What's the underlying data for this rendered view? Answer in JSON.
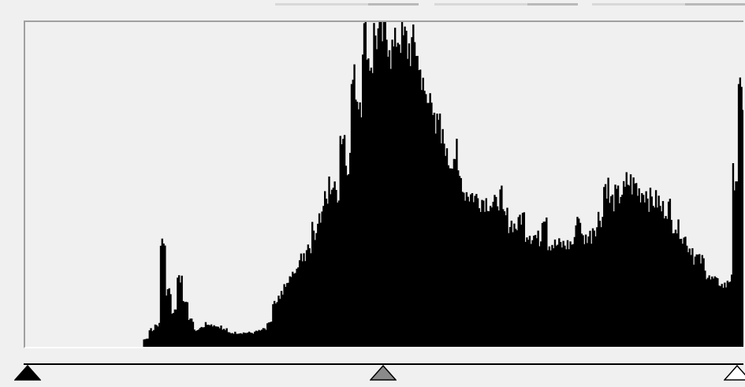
{
  "levels": {
    "histogram": {
      "bin_count": 128,
      "bar_color": "#000000",
      "background_color": "#f0f0f0",
      "profile": [
        [
          0,
          0
        ],
        [
          20,
          0
        ],
        [
          21,
          0.03
        ],
        [
          22,
          0.06
        ],
        [
          24,
          0.09
        ],
        [
          25,
          0.18
        ],
        [
          26,
          0.12
        ],
        [
          27,
          0.15
        ],
        [
          28,
          0.05
        ],
        [
          29,
          0.09
        ],
        [
          30,
          0.06
        ],
        [
          32,
          0.08
        ],
        [
          34,
          0.07
        ],
        [
          36,
          0.05
        ],
        [
          38,
          0.05
        ],
        [
          40,
          0.05
        ],
        [
          42,
          0.06
        ],
        [
          43,
          0.08
        ],
        [
          44,
          0.14
        ],
        [
          46,
          0.2
        ],
        [
          48,
          0.26
        ],
        [
          50,
          0.33
        ],
        [
          52,
          0.42
        ],
        [
          54,
          0.52
        ],
        [
          55,
          0.5
        ],
        [
          56,
          0.55
        ],
        [
          57,
          0.6
        ],
        [
          58,
          0.77
        ],
        [
          59,
          0.8
        ],
        [
          60,
          0.88
        ],
        [
          61,
          0.92
        ],
        [
          62,
          0.96
        ],
        [
          63,
          1.0
        ],
        [
          64,
          0.98
        ],
        [
          65,
          0.95
        ],
        [
          66,
          1.0
        ],
        [
          67,
          0.98
        ],
        [
          68,
          0.96
        ],
        [
          69,
          0.9
        ],
        [
          70,
          0.88
        ],
        [
          71,
          0.78
        ],
        [
          72,
          0.8
        ],
        [
          73,
          0.7
        ],
        [
          74,
          0.66
        ],
        [
          75,
          0.6
        ],
        [
          76,
          0.58
        ],
        [
          78,
          0.5
        ],
        [
          80,
          0.48
        ],
        [
          82,
          0.47
        ],
        [
          84,
          0.44
        ],
        [
          86,
          0.4
        ],
        [
          88,
          0.38
        ],
        [
          90,
          0.36
        ],
        [
          92,
          0.34
        ],
        [
          94,
          0.33
        ],
        [
          96,
          0.33
        ],
        [
          98,
          0.34
        ],
        [
          100,
          0.36
        ],
        [
          102,
          0.42
        ],
        [
          104,
          0.47
        ],
        [
          106,
          0.5
        ],
        [
          108,
          0.52
        ],
        [
          110,
          0.48
        ],
        [
          112,
          0.47
        ],
        [
          114,
          0.42
        ],
        [
          116,
          0.38
        ],
        [
          118,
          0.32
        ],
        [
          120,
          0.26
        ],
        [
          122,
          0.22
        ],
        [
          124,
          0.2
        ],
        [
          125,
          0.22
        ],
        [
          126,
          0.42
        ],
        [
          127,
          0.8
        ]
      ],
      "spikes": [
        [
          24,
          0.33
        ],
        [
          25,
          0.18
        ],
        [
          27,
          0.22
        ],
        [
          28,
          0.16
        ],
        [
          56,
          0.68
        ],
        [
          58,
          0.85
        ],
        [
          60,
          1.0
        ],
        [
          62,
          1.0
        ],
        [
          64,
          1.0
        ],
        [
          66,
          1.0
        ],
        [
          69,
          0.96
        ],
        [
          72,
          0.74
        ],
        [
          76,
          0.62
        ],
        [
          80,
          0.48
        ],
        [
          84,
          0.48
        ],
        [
          88,
          0.42
        ],
        [
          92,
          0.43
        ],
        [
          98,
          0.42
        ],
        [
          103,
          0.52
        ],
        [
          107,
          0.53
        ],
        [
          110,
          0.5
        ],
        [
          114,
          0.45
        ],
        [
          120,
          0.28
        ],
        [
          126,
          0.55
        ]
      ]
    },
    "sliders": {
      "black_point": {
        "value": 0,
        "color": "#000000"
      },
      "gamma": {
        "value": 0.5,
        "color": "#8a8a8a"
      },
      "white_point": {
        "value": 1,
        "color": "#ffffff"
      }
    }
  }
}
